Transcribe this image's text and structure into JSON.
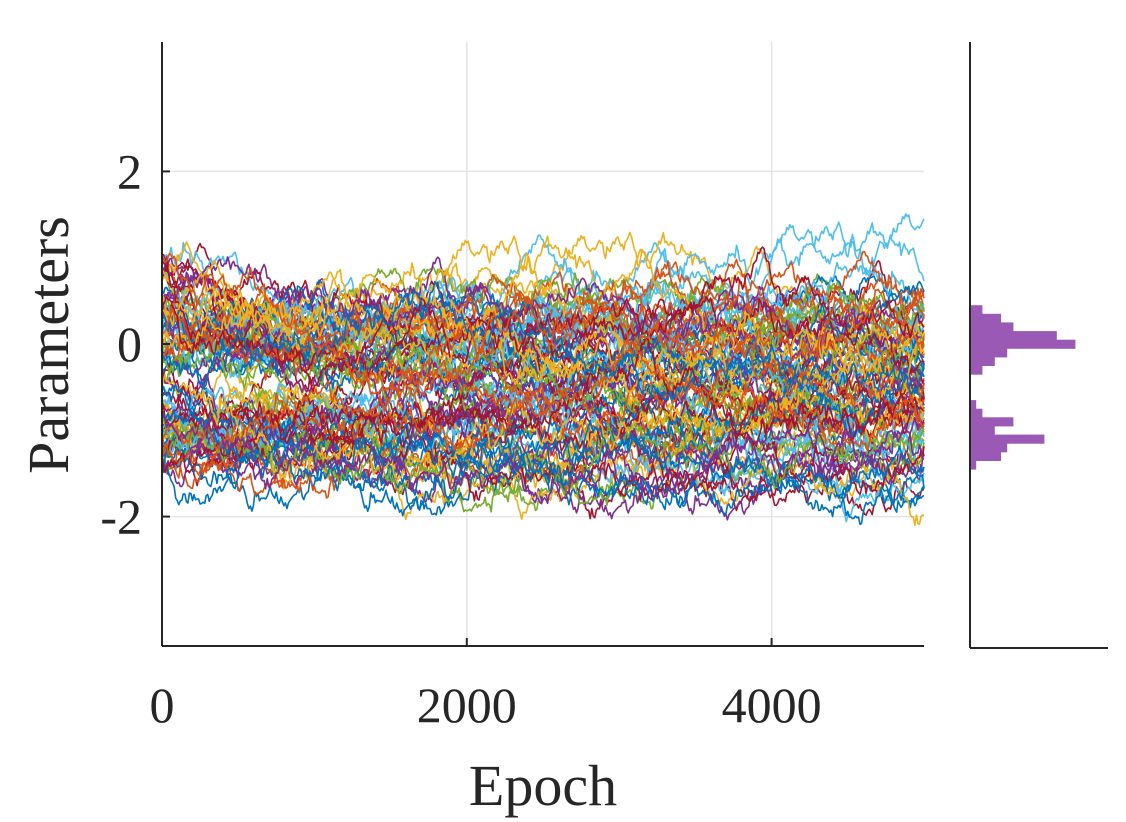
{
  "chart_data": [
    {
      "type": "line",
      "title": "",
      "xlabel": "Epoch",
      "ylabel": "Parameters",
      "xlim": [
        0,
        5000
      ],
      "ylim": [
        -3.5,
        3.5
      ],
      "xticks": [
        0,
        2000,
        4000
      ],
      "xtick_labels": [
        "0",
        "2000",
        "4000"
      ],
      "yticks": [
        2,
        0,
        -2
      ],
      "ytick_labels": [
        "2",
        "0",
        "-2"
      ],
      "grid": true,
      "legend": "none",
      "description": "Many parameter trajectories over training epochs; they start spread between about -1.5 and 1.1 and settle into two bands centered near 0 and near -1.1.",
      "series_groups": [
        {
          "center": 0.0,
          "spread": 0.35,
          "count": 55,
          "start_range": [
            -0.4,
            1.1
          ]
        },
        {
          "center": -1.1,
          "spread": 0.3,
          "count": 45,
          "start_range": [
            -1.5,
            -0.5
          ]
        }
      ],
      "colors": [
        "#0072BD",
        "#D95319",
        "#EDB120",
        "#7E2F8E",
        "#77AC30",
        "#4DBEEE",
        "#A2142F"
      ]
    },
    {
      "type": "bar",
      "orientation": "horizontal",
      "description": "Histogram of final parameter values",
      "color": "#9B59B6",
      "bins": [
        {
          "y": 0.4,
          "count": 2
        },
        {
          "y": 0.3,
          "count": 5
        },
        {
          "y": 0.2,
          "count": 7
        },
        {
          "y": 0.1,
          "count": 14
        },
        {
          "y": 0.0,
          "count": 17
        },
        {
          "y": -0.1,
          "count": 6
        },
        {
          "y": -0.2,
          "count": 4
        },
        {
          "y": -0.3,
          "count": 2
        },
        {
          "y": -0.7,
          "count": 1
        },
        {
          "y": -0.8,
          "count": 2
        },
        {
          "y": -0.9,
          "count": 7
        },
        {
          "y": -1.0,
          "count": 4
        },
        {
          "y": -1.1,
          "count": 12
        },
        {
          "y": -1.2,
          "count": 6
        },
        {
          "y": -1.3,
          "count": 5
        },
        {
          "y": -1.4,
          "count": 1
        }
      ],
      "xmax": 20
    }
  ]
}
